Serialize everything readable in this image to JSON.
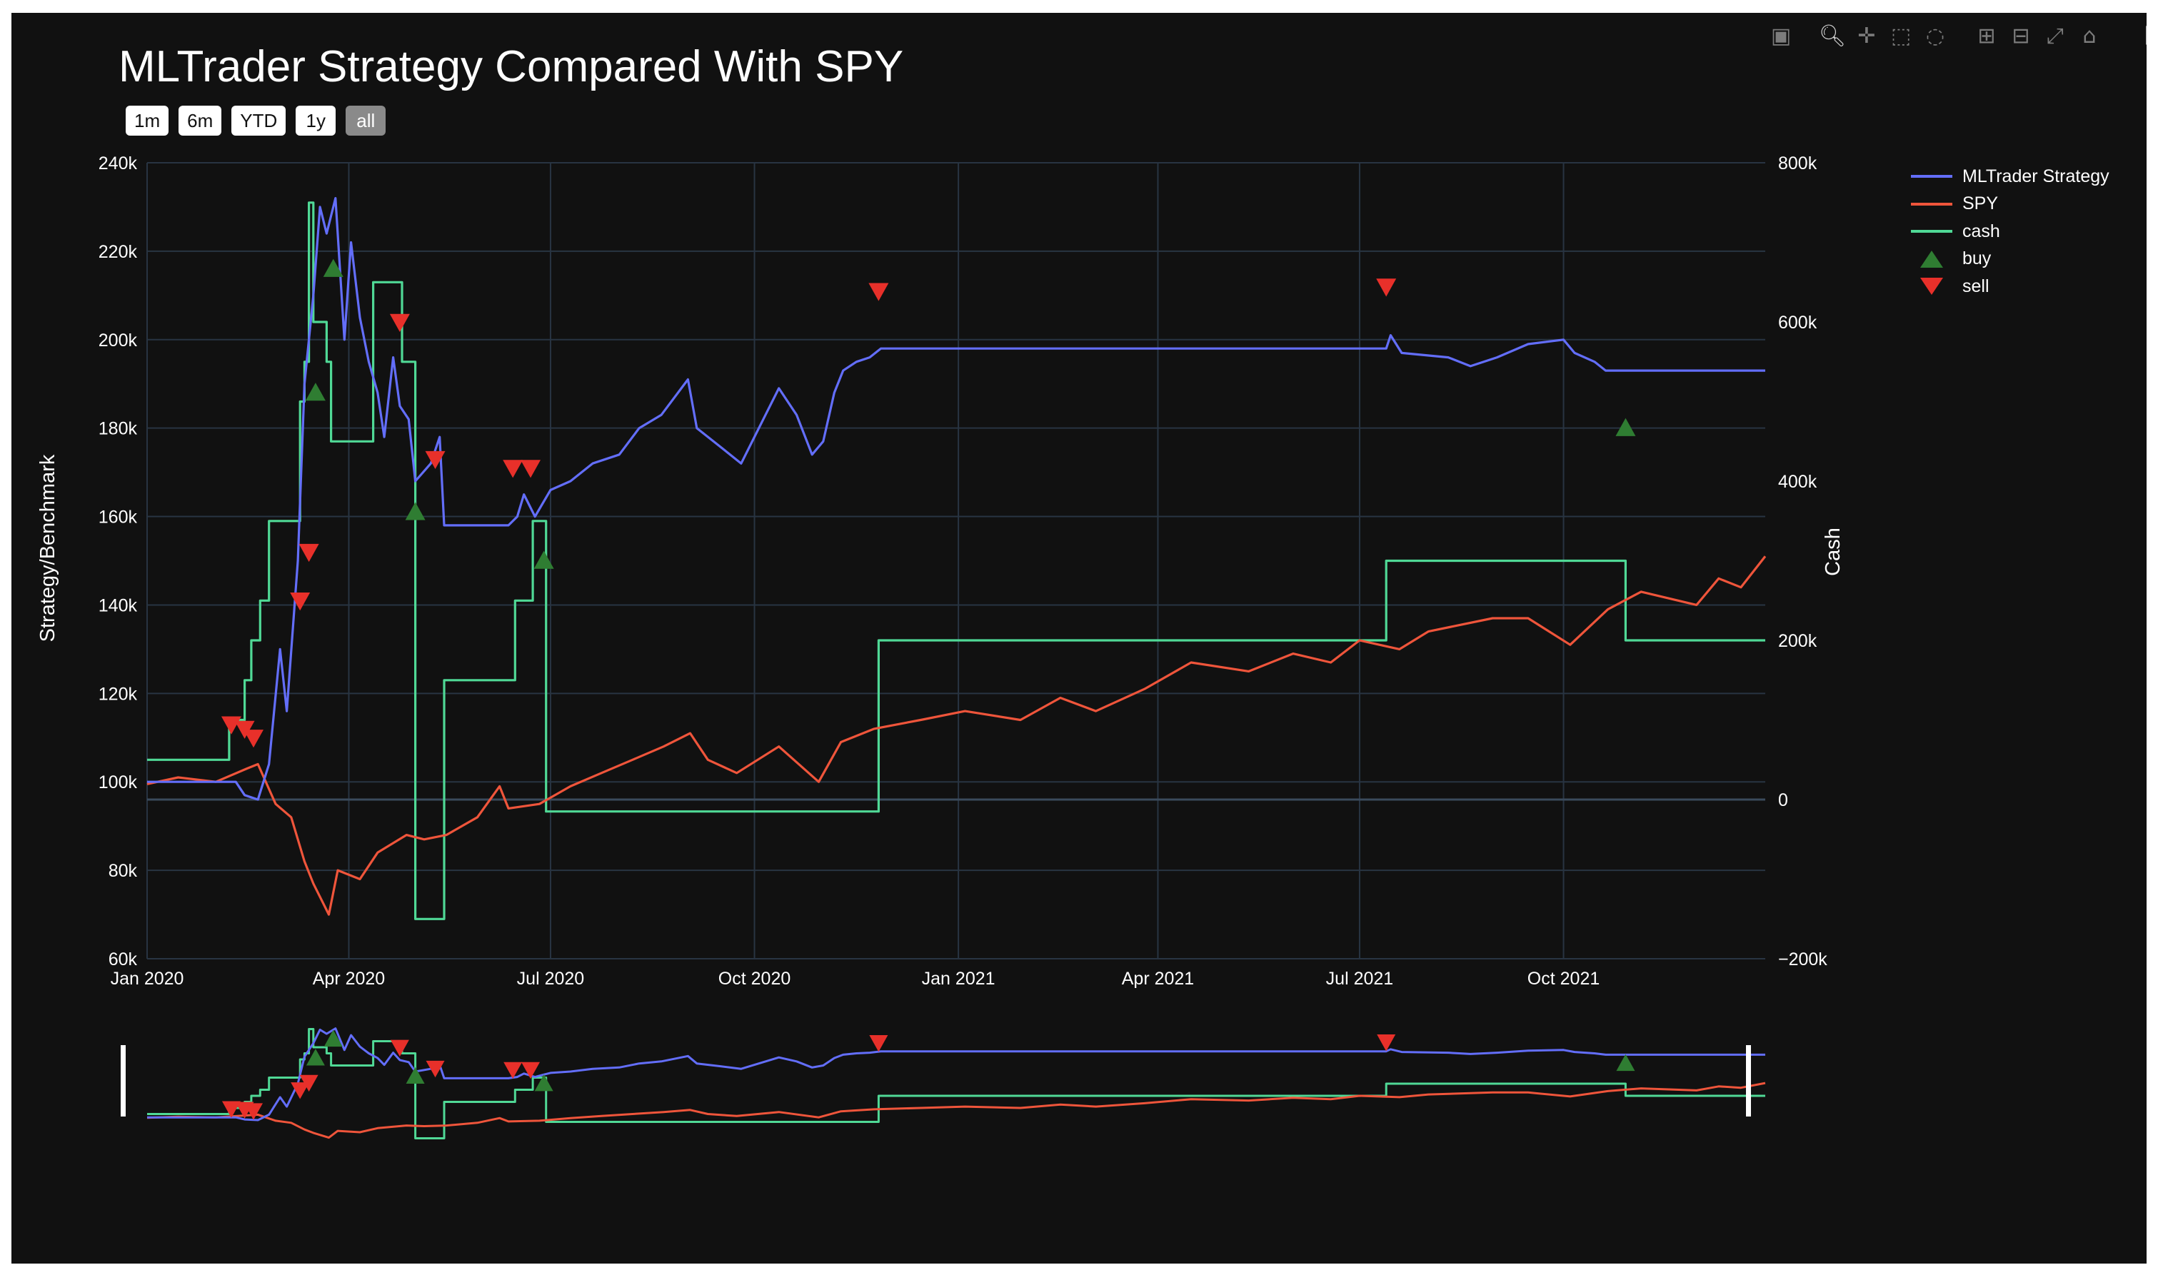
{
  "modebar": {
    "icons": [
      "camera-icon",
      "zoom-icon",
      "pan-icon",
      "box-select-icon",
      "lasso-select-icon",
      "zoom-in-icon",
      "zoom-out-icon",
      "autoscale-icon",
      "reset-axes-icon",
      "plotly-logo-icon"
    ]
  },
  "range_selector": {
    "buttons": [
      {
        "label": "1m",
        "active": false
      },
      {
        "label": "6m",
        "active": false
      },
      {
        "label": "YTD",
        "active": false
      },
      {
        "label": "1y",
        "active": false
      },
      {
        "label": "all",
        "active": true
      }
    ]
  },
  "chart_data": {
    "type": "line",
    "title": "MLTrader Strategy Compared With SPY",
    "xlabel": "",
    "ylabel": "Strategy/Benchmark",
    "y2label": "Cash",
    "x_ticks": [
      "Jan 2020",
      "Apr 2020",
      "Jul 2020",
      "Oct 2020",
      "Jan 2021",
      "Apr 2021",
      "Jul 2021",
      "Oct 2021"
    ],
    "x_tick_dates": [
      "2020-01-01",
      "2020-04-01",
      "2020-07-01",
      "2020-10-01",
      "2021-01-01",
      "2021-04-01",
      "2021-07-01",
      "2021-10-01"
    ],
    "xlim": [
      "2020-01-01",
      "2021-12-31"
    ],
    "y_ticks": [
      "60k",
      "80k",
      "100k",
      "120k",
      "140k",
      "160k",
      "180k",
      "200k",
      "220k",
      "240k"
    ],
    "ylim": [
      60000,
      240000
    ],
    "y2_ticks": [
      "−200k",
      "0",
      "200k",
      "400k",
      "600k",
      "800k"
    ],
    "y2lim": [
      -200000,
      800000
    ],
    "grid": true,
    "legend_position": "top-right",
    "rangeslider": true,
    "colors": {
      "background": "#111111",
      "grid": "#283442",
      "strategy": "#636efa",
      "spy": "#ef553b",
      "cash": "#50d996",
      "buy": "#2f7d32",
      "sell": "#e8302a"
    },
    "series": [
      {
        "name": "MLTrader Strategy",
        "axis": "y",
        "color": "#636efa",
        "points": [
          [
            "2020-01-01",
            100000
          ],
          [
            "2020-01-15",
            100000
          ],
          [
            "2020-02-10",
            100000
          ],
          [
            "2020-02-14",
            97000
          ],
          [
            "2020-02-20",
            96000
          ],
          [
            "2020-02-25",
            104000
          ],
          [
            "2020-03-01",
            130000
          ],
          [
            "2020-03-04",
            116000
          ],
          [
            "2020-03-09",
            150000
          ],
          [
            "2020-03-12",
            190000
          ],
          [
            "2020-03-16",
            210000
          ],
          [
            "2020-03-19",
            230000
          ],
          [
            "2020-03-22",
            224000
          ],
          [
            "2020-03-26",
            232000
          ],
          [
            "2020-03-30",
            200000
          ],
          [
            "2020-04-02",
            222000
          ],
          [
            "2020-04-06",
            205000
          ],
          [
            "2020-04-10",
            195000
          ],
          [
            "2020-04-14",
            188000
          ],
          [
            "2020-04-17",
            178000
          ],
          [
            "2020-04-21",
            196000
          ],
          [
            "2020-04-24",
            185000
          ],
          [
            "2020-04-28",
            182000
          ],
          [
            "2020-05-01",
            168000
          ],
          [
            "2020-05-08",
            172000
          ],
          [
            "2020-05-12",
            178000
          ],
          [
            "2020-05-14",
            158000
          ],
          [
            "2020-06-12",
            158000
          ],
          [
            "2020-06-16",
            160000
          ],
          [
            "2020-06-19",
            165000
          ],
          [
            "2020-06-24",
            160000
          ],
          [
            "2020-07-01",
            166000
          ],
          [
            "2020-07-10",
            168000
          ],
          [
            "2020-07-20",
            172000
          ],
          [
            "2020-08-01",
            174000
          ],
          [
            "2020-08-10",
            180000
          ],
          [
            "2020-08-20",
            183000
          ],
          [
            "2020-09-01",
            191000
          ],
          [
            "2020-09-05",
            180000
          ],
          [
            "2020-09-15",
            176000
          ],
          [
            "2020-09-25",
            172000
          ],
          [
            "2020-10-05",
            182000
          ],
          [
            "2020-10-12",
            189000
          ],
          [
            "2020-10-20",
            183000
          ],
          [
            "2020-10-27",
            174000
          ],
          [
            "2020-11-01",
            177000
          ],
          [
            "2020-11-06",
            188000
          ],
          [
            "2020-11-10",
            193000
          ],
          [
            "2020-11-16",
            195000
          ],
          [
            "2020-11-22",
            196000
          ],
          [
            "2020-11-27",
            198000
          ],
          [
            "2021-01-01",
            198000
          ],
          [
            "2021-04-01",
            198000
          ],
          [
            "2021-07-01",
            198000
          ],
          [
            "2021-07-13",
            198000
          ],
          [
            "2021-07-15",
            201000
          ],
          [
            "2021-07-20",
            197000
          ],
          [
            "2021-08-10",
            196000
          ],
          [
            "2021-08-20",
            194000
          ],
          [
            "2021-09-01",
            196000
          ],
          [
            "2021-09-15",
            199000
          ],
          [
            "2021-10-01",
            200000
          ],
          [
            "2021-10-06",
            197000
          ],
          [
            "2021-10-15",
            195000
          ],
          [
            "2021-10-20",
            193000
          ],
          [
            "2021-12-31",
            193000
          ]
        ]
      },
      {
        "name": "SPY",
        "axis": "y",
        "color": "#ef553b",
        "points": [
          [
            "2020-01-01",
            99500
          ],
          [
            "2020-01-15",
            101000
          ],
          [
            "2020-02-01",
            100000
          ],
          [
            "2020-02-15",
            103000
          ],
          [
            "2020-02-20",
            104000
          ],
          [
            "2020-02-28",
            95000
          ],
          [
            "2020-03-06",
            92000
          ],
          [
            "2020-03-12",
            82000
          ],
          [
            "2020-03-16",
            77000
          ],
          [
            "2020-03-23",
            70000
          ],
          [
            "2020-03-27",
            80000
          ],
          [
            "2020-04-06",
            78000
          ],
          [
            "2020-04-14",
            84000
          ],
          [
            "2020-04-27",
            88000
          ],
          [
            "2020-05-05",
            87000
          ],
          [
            "2020-05-15",
            88000
          ],
          [
            "2020-05-29",
            92000
          ],
          [
            "2020-06-08",
            99000
          ],
          [
            "2020-06-12",
            94000
          ],
          [
            "2020-06-26",
            95000
          ],
          [
            "2020-07-10",
            99000
          ],
          [
            "2020-07-24",
            102000
          ],
          [
            "2020-08-07",
            105000
          ],
          [
            "2020-08-21",
            108000
          ],
          [
            "2020-09-02",
            111000
          ],
          [
            "2020-09-10",
            105000
          ],
          [
            "2020-09-23",
            102000
          ],
          [
            "2020-10-12",
            108000
          ],
          [
            "2020-10-30",
            100000
          ],
          [
            "2020-11-09",
            109000
          ],
          [
            "2020-11-24",
            112000
          ],
          [
            "2020-12-15",
            114000
          ],
          [
            "2021-01-04",
            116000
          ],
          [
            "2021-01-29",
            114000
          ],
          [
            "2021-02-16",
            119000
          ],
          [
            "2021-03-04",
            116000
          ],
          [
            "2021-03-26",
            121000
          ],
          [
            "2021-04-16",
            127000
          ],
          [
            "2021-05-12",
            125000
          ],
          [
            "2021-06-01",
            129000
          ],
          [
            "2021-06-18",
            127000
          ],
          [
            "2021-07-01",
            132000
          ],
          [
            "2021-07-19",
            130000
          ],
          [
            "2021-08-01",
            134000
          ],
          [
            "2021-08-30",
            137000
          ],
          [
            "2021-09-15",
            137000
          ],
          [
            "2021-10-04",
            131000
          ],
          [
            "2021-10-21",
            139000
          ],
          [
            "2021-11-05",
            143000
          ],
          [
            "2021-11-30",
            140000
          ],
          [
            "2021-12-10",
            146000
          ],
          [
            "2021-12-20",
            144000
          ],
          [
            "2021-12-31",
            151000
          ]
        ]
      },
      {
        "name": "cash",
        "axis": "y2",
        "color": "#50d996",
        "step": true,
        "points": [
          [
            "2020-01-01",
            50000
          ],
          [
            "2020-02-07",
            100000
          ],
          [
            "2020-02-14",
            150000
          ],
          [
            "2020-02-17",
            200000
          ],
          [
            "2020-02-21",
            250000
          ],
          [
            "2020-02-25",
            350000
          ],
          [
            "2020-03-10",
            500000
          ],
          [
            "2020-03-12",
            550000
          ],
          [
            "2020-03-14",
            750000
          ],
          [
            "2020-03-16",
            600000
          ],
          [
            "2020-03-22",
            550000
          ],
          [
            "2020-03-24",
            450000
          ],
          [
            "2020-04-12",
            650000
          ],
          [
            "2020-04-25",
            550000
          ],
          [
            "2020-05-01",
            -150000
          ],
          [
            "2020-05-14",
            150000
          ],
          [
            "2020-06-15",
            250000
          ],
          [
            "2020-06-23",
            350000
          ],
          [
            "2020-06-29",
            -15000
          ],
          [
            "2020-11-26",
            200000
          ],
          [
            "2021-07-13",
            300000
          ],
          [
            "2021-10-29",
            200000
          ],
          [
            "2021-12-31",
            200000
          ]
        ]
      },
      {
        "name": "buy",
        "axis": "y",
        "color": "#2f7d32",
        "marker": "triangle-up",
        "points": [
          [
            "2020-03-17",
            188000
          ],
          [
            "2020-03-25",
            216000
          ],
          [
            "2020-05-01",
            161000
          ],
          [
            "2020-06-28",
            150000
          ],
          [
            "2021-10-29",
            180000
          ]
        ]
      },
      {
        "name": "sell",
        "axis": "y",
        "color": "#e8302a",
        "marker": "triangle-down",
        "points": [
          [
            "2020-02-08",
            113000
          ],
          [
            "2020-02-14",
            112000
          ],
          [
            "2020-02-18",
            110000
          ],
          [
            "2020-03-10",
            141000
          ],
          [
            "2020-03-14",
            152000
          ],
          [
            "2020-04-24",
            204000
          ],
          [
            "2020-05-10",
            173000
          ],
          [
            "2020-06-14",
            171000
          ],
          [
            "2020-06-22",
            171000
          ],
          [
            "2020-11-26",
            211000
          ],
          [
            "2021-07-13",
            212000
          ]
        ]
      }
    ]
  }
}
